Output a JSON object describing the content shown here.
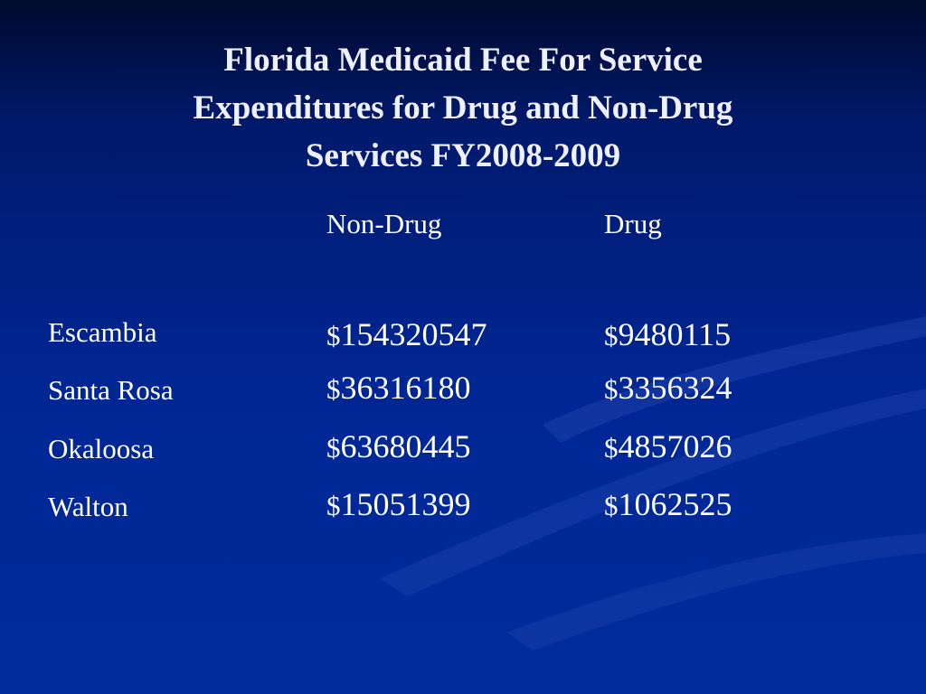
{
  "title": {
    "line1": "Florida Medicaid Fee For Service",
    "line2": "Expenditures for Drug and Non-Drug",
    "line3": "Services FY2008-2009"
  },
  "table": {
    "columns": [
      "Non-Drug",
      "Drug"
    ],
    "rows": [
      {
        "county": "Escambia",
        "non_drug": "154320547",
        "drug": "9480115"
      },
      {
        "county": "Santa Rosa",
        "non_drug": "36316180",
        "drug": "3356324"
      },
      {
        "county": "Okaloosa",
        "non_drug": "63680445",
        "drug": "4857026"
      },
      {
        "county": "Walton",
        "non_drug": "15051399",
        "drug": "1062525"
      }
    ],
    "currency_symbol": "$"
  },
  "colors": {
    "background_top": "#000a2e",
    "background_bottom": "#002c9c",
    "swoosh": "#2a4fb8",
    "text": "#ffffff"
  }
}
